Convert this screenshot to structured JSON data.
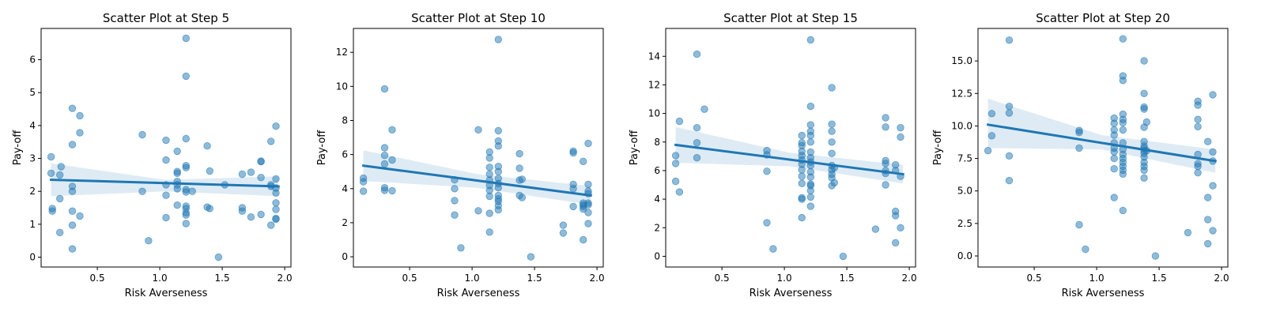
{
  "colors": {
    "point": "#1f77b4",
    "line": "#1f77b4",
    "band": "#1f77b4"
  },
  "chart_data": [
    {
      "type": "scatter",
      "title": "Scatter Plot at Step 5",
      "xlabel": "Risk Averseness",
      "ylabel": "Pay-off",
      "xlim": [
        0.05,
        2.05
      ],
      "ylim": [
        -0.3,
        6.95
      ],
      "xticks": [
        0.5,
        1.0,
        1.5,
        2.0
      ],
      "xtick_labels": [
        "0.5",
        "1.0",
        "1.5",
        "2.0"
      ],
      "yticks": [
        0,
        1,
        2,
        3,
        4,
        5,
        6
      ],
      "ytick_labels": [
        "0",
        "1",
        "2",
        "3",
        "4",
        "5",
        "6"
      ],
      "regression": {
        "x": [
          0.13,
          1.95
        ],
        "y": [
          2.35,
          2.15
        ]
      },
      "ci_band": {
        "x": [
          0.13,
          1.04,
          1.95
        ],
        "lower": [
          1.85,
          2.0,
          1.85
        ],
        "upper": [
          2.85,
          2.35,
          2.45
        ]
      },
      "points": [
        [
          0.13,
          3.05
        ],
        [
          0.13,
          2.55
        ],
        [
          0.14,
          1.48
        ],
        [
          0.14,
          1.4
        ],
        [
          0.21,
          2.75
        ],
        [
          0.2,
          2.5
        ],
        [
          0.2,
          1.78
        ],
        [
          0.2,
          0.75
        ],
        [
          0.3,
          4.52
        ],
        [
          0.3,
          3.42
        ],
        [
          0.3,
          2.15
        ],
        [
          0.3,
          2.0
        ],
        [
          0.3,
          1.4
        ],
        [
          0.3,
          0.97
        ],
        [
          0.3,
          0.25
        ],
        [
          0.36,
          4.3
        ],
        [
          0.36,
          3.78
        ],
        [
          0.36,
          1.25
        ],
        [
          0.86,
          3.72
        ],
        [
          0.86,
          2.0
        ],
        [
          0.91,
          0.5
        ],
        [
          1.05,
          3.55
        ],
        [
          1.05,
          2.95
        ],
        [
          1.05,
          2.2
        ],
        [
          1.05,
          1.88
        ],
        [
          1.05,
          1.2
        ],
        [
          1.14,
          3.22
        ],
        [
          1.14,
          2.6
        ],
        [
          1.14,
          2.55
        ],
        [
          1.14,
          2.3
        ],
        [
          1.14,
          2.2
        ],
        [
          1.14,
          2.08
        ],
        [
          1.14,
          1.58
        ],
        [
          1.21,
          6.65
        ],
        [
          1.21,
          5.5
        ],
        [
          1.21,
          3.6
        ],
        [
          1.21,
          2.78
        ],
        [
          1.21,
          2.72
        ],
        [
          1.21,
          2.05
        ],
        [
          1.21,
          1.98
        ],
        [
          1.21,
          1.55
        ],
        [
          1.21,
          1.48
        ],
        [
          1.21,
          1.35
        ],
        [
          1.21,
          1.28
        ],
        [
          1.21,
          1.02
        ],
        [
          1.26,
          2.0
        ],
        [
          1.38,
          3.38
        ],
        [
          1.38,
          1.52
        ],
        [
          1.4,
          2.62
        ],
        [
          1.4,
          1.48
        ],
        [
          1.47,
          0.0
        ],
        [
          1.52,
          2.2
        ],
        [
          1.66,
          2.52
        ],
        [
          1.66,
          1.5
        ],
        [
          1.66,
          1.4
        ],
        [
          1.73,
          2.58
        ],
        [
          1.73,
          1.22
        ],
        [
          1.81,
          2.92
        ],
        [
          1.81,
          2.9
        ],
        [
          1.81,
          2.42
        ],
        [
          1.81,
          1.3
        ],
        [
          1.89,
          3.52
        ],
        [
          1.89,
          2.2
        ],
        [
          1.89,
          2.15
        ],
        [
          1.89,
          0.97
        ],
        [
          1.93,
          3.98
        ],
        [
          1.93,
          2.38
        ],
        [
          1.93,
          2.1
        ],
        [
          1.93,
          1.95
        ],
        [
          1.93,
          1.65
        ],
        [
          1.93,
          1.45
        ],
        [
          1.93,
          1.18
        ],
        [
          1.93,
          1.15
        ]
      ]
    },
    {
      "type": "scatter",
      "title": "Scatter Plot at Step 10",
      "xlabel": "Risk Averseness",
      "ylabel": "Pay-off",
      "xlim": [
        0.05,
        2.05
      ],
      "ylim": [
        -0.6,
        13.4
      ],
      "xticks": [
        0.5,
        1.0,
        1.5,
        2.0
      ],
      "xtick_labels": [
        "0.5",
        "1.0",
        "1.5",
        "2.0"
      ],
      "yticks": [
        0,
        2,
        4,
        6,
        8,
        10,
        12
      ],
      "ytick_labels": [
        "0",
        "2",
        "4",
        "6",
        "8",
        "10",
        "12"
      ],
      "regression": {
        "x": [
          0.13,
          1.95
        ],
        "y": [
          5.35,
          3.6
        ]
      },
      "ci_band": {
        "x": [
          0.13,
          1.04,
          1.95
        ],
        "lower": [
          4.45,
          4.05,
          3.05
        ],
        "upper": [
          6.25,
          4.85,
          4.15
        ]
      },
      "points": [
        [
          0.13,
          4.62
        ],
        [
          0.13,
          4.4
        ],
        [
          0.13,
          3.85
        ],
        [
          0.3,
          9.85
        ],
        [
          0.3,
          6.4
        ],
        [
          0.3,
          5.95
        ],
        [
          0.3,
          5.45
        ],
        [
          0.3,
          4.05
        ],
        [
          0.3,
          3.9
        ],
        [
          0.36,
          7.45
        ],
        [
          0.36,
          5.68
        ],
        [
          0.36,
          3.88
        ],
        [
          0.86,
          4.52
        ],
        [
          0.86,
          4.0
        ],
        [
          0.86,
          3.3
        ],
        [
          0.86,
          2.45
        ],
        [
          0.91,
          0.52
        ],
        [
          1.05,
          7.45
        ],
        [
          1.05,
          2.7
        ],
        [
          1.14,
          6.15
        ],
        [
          1.14,
          5.8
        ],
        [
          1.14,
          5.25
        ],
        [
          1.14,
          4.85
        ],
        [
          1.14,
          4.5
        ],
        [
          1.14,
          4.2
        ],
        [
          1.14,
          3.9
        ],
        [
          1.14,
          3.55
        ],
        [
          1.14,
          2.55
        ],
        [
          1.14,
          1.45
        ],
        [
          1.21,
          12.75
        ],
        [
          1.21,
          7.4
        ],
        [
          1.21,
          6.8
        ],
        [
          1.21,
          6.5
        ],
        [
          1.21,
          5.3
        ],
        [
          1.21,
          5.0
        ],
        [
          1.21,
          4.6
        ],
        [
          1.21,
          4.3
        ],
        [
          1.21,
          4.05
        ],
        [
          1.21,
          3.6
        ],
        [
          1.21,
          3.4
        ],
        [
          1.21,
          3.25
        ],
        [
          1.21,
          3.0
        ],
        [
          1.21,
          2.75
        ],
        [
          1.38,
          6.05
        ],
        [
          1.38,
          5.2
        ],
        [
          1.38,
          4.5
        ],
        [
          1.38,
          3.6
        ],
        [
          1.4,
          4.55
        ],
        [
          1.4,
          3.48
        ],
        [
          1.47,
          0.0
        ],
        [
          1.73,
          1.85
        ],
        [
          1.73,
          1.4
        ],
        [
          1.81,
          6.2
        ],
        [
          1.81,
          6.1
        ],
        [
          1.81,
          4.25
        ],
        [
          1.81,
          4.0
        ],
        [
          1.81,
          2.95
        ],
        [
          1.89,
          5.6
        ],
        [
          1.89,
          3.15
        ],
        [
          1.89,
          3.05
        ],
        [
          1.89,
          2.95
        ],
        [
          1.89,
          2.8
        ],
        [
          1.89,
          1.0
        ],
        [
          1.93,
          6.65
        ],
        [
          1.93,
          4.25
        ],
        [
          1.93,
          3.85
        ],
        [
          1.93,
          3.7
        ],
        [
          1.93,
          3.15
        ],
        [
          1.93,
          3.05
        ],
        [
          1.93,
          2.6
        ],
        [
          1.93,
          1.95
        ]
      ]
    },
    {
      "type": "scatter",
      "title": "Scatter Plot at Step 15",
      "xlabel": "Risk Averseness",
      "ylabel": "Pay-off",
      "xlim": [
        0.05,
        2.05
      ],
      "ylim": [
        -0.75,
        15.95
      ],
      "xticks": [
        0.5,
        1.0,
        1.5,
        2.0
      ],
      "xtick_labels": [
        "0.5",
        "1.0",
        "1.5",
        "2.0"
      ],
      "yticks": [
        0,
        2,
        4,
        6,
        8,
        10,
        12,
        14
      ],
      "ytick_labels": [
        "0",
        "2",
        "4",
        "6",
        "8",
        "10",
        "12",
        "14"
      ],
      "regression": {
        "x": [
          0.13,
          1.95
        ],
        "y": [
          7.8,
          5.75
        ]
      },
      "ci_band": {
        "x": [
          0.13,
          1.04,
          1.95
        ],
        "lower": [
          6.55,
          6.3,
          5.1
        ],
        "upper": [
          9.05,
          7.25,
          6.4
        ]
      },
      "points": [
        [
          0.13,
          7.05
        ],
        [
          0.13,
          6.5
        ],
        [
          0.13,
          5.25
        ],
        [
          0.16,
          9.45
        ],
        [
          0.16,
          4.5
        ],
        [
          0.3,
          14.15
        ],
        [
          0.3,
          9.0
        ],
        [
          0.3,
          7.95
        ],
        [
          0.3,
          6.9
        ],
        [
          0.36,
          10.3
        ],
        [
          0.86,
          7.4
        ],
        [
          0.86,
          7.1
        ],
        [
          0.86,
          5.95
        ],
        [
          0.86,
          2.35
        ],
        [
          0.91,
          0.52
        ],
        [
          1.14,
          8.45
        ],
        [
          1.14,
          7.95
        ],
        [
          1.14,
          7.75
        ],
        [
          1.14,
          7.35
        ],
        [
          1.14,
          7.05
        ],
        [
          1.14,
          6.75
        ],
        [
          1.14,
          6.45
        ],
        [
          1.14,
          6.05
        ],
        [
          1.14,
          5.6
        ],
        [
          1.14,
          5.1
        ],
        [
          1.14,
          4.1
        ],
        [
          1.14,
          4.0
        ],
        [
          1.14,
          2.7
        ],
        [
          1.21,
          15.15
        ],
        [
          1.21,
          10.5
        ],
        [
          1.21,
          9.2
        ],
        [
          1.21,
          8.75
        ],
        [
          1.21,
          8.45
        ],
        [
          1.21,
          8.0
        ],
        [
          1.21,
          7.3
        ],
        [
          1.21,
          6.9
        ],
        [
          1.21,
          6.6
        ],
        [
          1.21,
          6.35
        ],
        [
          1.21,
          5.9
        ],
        [
          1.21,
          5.55
        ],
        [
          1.21,
          5.05
        ],
        [
          1.21,
          4.95
        ],
        [
          1.21,
          4.6
        ],
        [
          1.21,
          4.15
        ],
        [
          1.21,
          3.5
        ],
        [
          1.38,
          11.8
        ],
        [
          1.38,
          9.25
        ],
        [
          1.38,
          8.75
        ],
        [
          1.38,
          8.0
        ],
        [
          1.38,
          7.2
        ],
        [
          1.38,
          6.35
        ],
        [
          1.38,
          6.05
        ],
        [
          1.38,
          5.75
        ],
        [
          1.38,
          5.5
        ],
        [
          1.38,
          4.95
        ],
        [
          1.4,
          6.2
        ],
        [
          1.4,
          5.15
        ],
        [
          1.47,
          0.0
        ],
        [
          1.73,
          1.9
        ],
        [
          1.81,
          9.7
        ],
        [
          1.81,
          9.05
        ],
        [
          1.81,
          6.7
        ],
        [
          1.81,
          6.5
        ],
        [
          1.81,
          6.0
        ],
        [
          1.81,
          5.8
        ],
        [
          1.81,
          5.0
        ],
        [
          1.89,
          6.4
        ],
        [
          1.89,
          6.0
        ],
        [
          1.89,
          3.15
        ],
        [
          1.89,
          2.85
        ],
        [
          1.89,
          0.95
        ],
        [
          1.93,
          9.0
        ],
        [
          1.93,
          8.35
        ],
        [
          1.93,
          5.6
        ],
        [
          1.93,
          2.0
        ]
      ]
    },
    {
      "type": "scatter",
      "title": "Scatter Plot at Step 20",
      "xlabel": "Risk Averseness",
      "ylabel": "Pay-off",
      "xlim": [
        0.05,
        2.05
      ],
      "ylim": [
        -0.85,
        17.5
      ],
      "xticks": [
        0.5,
        1.0,
        1.5,
        2.0
      ],
      "xtick_labels": [
        "0.5",
        "1.0",
        "1.5",
        "2.0"
      ],
      "yticks": [
        0,
        2.5,
        5,
        7.5,
        10,
        12.5,
        15
      ],
      "ytick_labels": [
        "0.0",
        "2.5",
        "5.0",
        "7.5",
        "10.0",
        "12.5",
        "15.0"
      ],
      "regression": {
        "x": [
          0.13,
          1.95
        ],
        "y": [
          10.1,
          7.3
        ]
      },
      "ci_band": {
        "x": [
          0.13,
          1.04,
          1.95
        ],
        "lower": [
          8.3,
          8.2,
          6.4
        ],
        "upper": [
          12.1,
          9.3,
          8.2
        ]
      },
      "points": [
        [
          0.13,
          8.1
        ],
        [
          0.16,
          10.95
        ],
        [
          0.16,
          9.25
        ],
        [
          0.3,
          16.6
        ],
        [
          0.3,
          11.5
        ],
        [
          0.3,
          11.0
        ],
        [
          0.3,
          7.7
        ],
        [
          0.3,
          5.8
        ],
        [
          0.86,
          9.65
        ],
        [
          0.86,
          9.5
        ],
        [
          0.86,
          8.3
        ],
        [
          0.86,
          2.4
        ],
        [
          0.91,
          0.52
        ],
        [
          1.14,
          10.6
        ],
        [
          1.14,
          10.2
        ],
        [
          1.14,
          9.7
        ],
        [
          1.14,
          9.3
        ],
        [
          1.14,
          8.7
        ],
        [
          1.14,
          8.3
        ],
        [
          1.14,
          8.0
        ],
        [
          1.14,
          7.5
        ],
        [
          1.14,
          6.7
        ],
        [
          1.14,
          4.5
        ],
        [
          1.21,
          16.7
        ],
        [
          1.21,
          13.85
        ],
        [
          1.21,
          13.5
        ],
        [
          1.21,
          10.9
        ],
        [
          1.21,
          10.5
        ],
        [
          1.21,
          10.25
        ],
        [
          1.21,
          9.7
        ],
        [
          1.21,
          8.7
        ],
        [
          1.21,
          8.2
        ],
        [
          1.21,
          7.8
        ],
        [
          1.21,
          7.5
        ],
        [
          1.21,
          7.2
        ],
        [
          1.21,
          6.9
        ],
        [
          1.21,
          6.6
        ],
        [
          1.21,
          6.3
        ],
        [
          1.21,
          3.5
        ],
        [
          1.38,
          15.0
        ],
        [
          1.38,
          12.5
        ],
        [
          1.38,
          11.45
        ],
        [
          1.38,
          11.3
        ],
        [
          1.38,
          9.9
        ],
        [
          1.38,
          8.8
        ],
        [
          1.38,
          8.45
        ],
        [
          1.38,
          8.3
        ],
        [
          1.38,
          8.1
        ],
        [
          1.38,
          7.9
        ],
        [
          1.38,
          7.6
        ],
        [
          1.38,
          7.2
        ],
        [
          1.38,
          6.9
        ],
        [
          1.38,
          6.6
        ],
        [
          1.38,
          6.0
        ],
        [
          1.4,
          10.3
        ],
        [
          1.4,
          8.1
        ],
        [
          1.47,
          0.0
        ],
        [
          1.73,
          1.8
        ],
        [
          1.81,
          11.9
        ],
        [
          1.81,
          11.6
        ],
        [
          1.81,
          10.5
        ],
        [
          1.81,
          9.95
        ],
        [
          1.81,
          7.8
        ],
        [
          1.81,
          7.1
        ],
        [
          1.81,
          6.9
        ],
        [
          1.81,
          6.4
        ],
        [
          1.89,
          8.8
        ],
        [
          1.89,
          4.5
        ],
        [
          1.89,
          2.8
        ],
        [
          1.89,
          0.95
        ],
        [
          1.93,
          12.4
        ],
        [
          1.93,
          8.0
        ],
        [
          1.93,
          7.3
        ],
        [
          1.93,
          5.4
        ],
        [
          1.93,
          1.95
        ]
      ]
    }
  ]
}
